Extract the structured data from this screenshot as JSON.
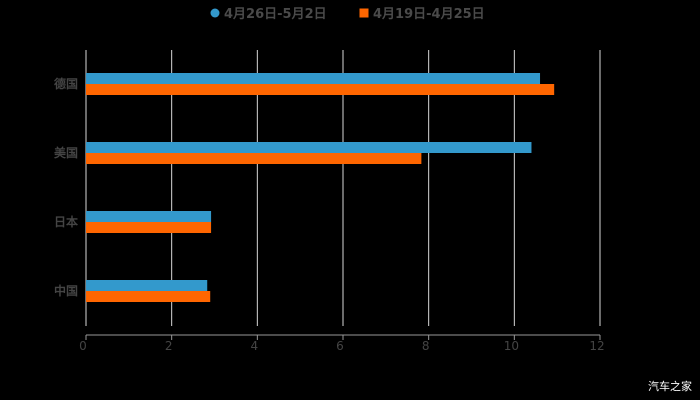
{
  "chart_data": {
    "type": "bar",
    "orientation": "horizontal",
    "title": "",
    "xlabel": "",
    "ylabel": "",
    "categories": [
      "德国",
      "美国",
      "日本",
      "中国"
    ],
    "series": [
      {
        "name": "4月26日-5月2日",
        "color": "#3399CC",
        "marker": "circle",
        "values": [
          10.6,
          10.4,
          2.92,
          2.83
        ]
      },
      {
        "name": "4月19日-4月25日",
        "color": "#FF6600",
        "marker": "square",
        "values": [
          10.93,
          7.83,
          2.92,
          2.9
        ]
      }
    ],
    "xlim": [
      0,
      12
    ],
    "xticks": [
      0,
      2,
      4,
      6,
      8,
      10,
      12
    ],
    "grid": "vertical",
    "legend_position": "top"
  },
  "watermark": "汽车之家"
}
